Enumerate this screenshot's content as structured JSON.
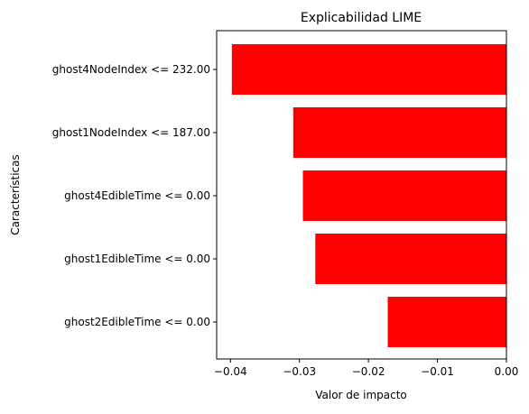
{
  "chart_data": {
    "type": "bar",
    "orientation": "horizontal",
    "title": "Explicabilidad LIME",
    "xlabel": "Valor de impacto",
    "ylabel": "Características",
    "categories": [
      "ghost4NodeIndex <= 232.00",
      "ghost1NodeIndex <= 187.00",
      "ghost4EdibleTime <= 0.00",
      "ghost1EdibleTime <= 0.00",
      "ghost2EdibleTime <= 0.00"
    ],
    "values": [
      -0.0398,
      -0.0309,
      -0.0295,
      -0.0277,
      -0.0172
    ],
    "xlim": [
      -0.042,
      0.0
    ],
    "xticks": [
      -0.04,
      -0.03,
      -0.02,
      -0.01,
      0.0
    ],
    "xtick_labels": [
      "−0.04",
      "−0.03",
      "−0.02",
      "−0.01",
      "0.00"
    ],
    "bar_color": "#ff0000",
    "grid": false,
    "legend": "none"
  }
}
